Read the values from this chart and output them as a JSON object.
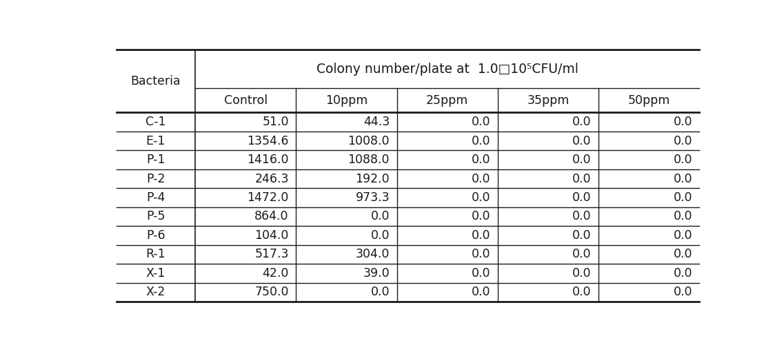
{
  "col_header_row1": "Colony number/plate at  1.0□10⁵CFU/ml",
  "bacteria_label": "Bacteria",
  "columns": [
    "Control",
    "10ppm",
    "25ppm",
    "35ppm",
    "50ppm"
  ],
  "rows": [
    {
      "bacteria": "C-1",
      "values": [
        "51.0",
        "44.3",
        "0.0",
        "0.0",
        "0.0"
      ]
    },
    {
      "bacteria": "E-1",
      "values": [
        "1354.6",
        "1008.0",
        "0.0",
        "0.0",
        "0.0"
      ]
    },
    {
      "bacteria": "P-1",
      "values": [
        "1416.0",
        "1088.0",
        "0.0",
        "0.0",
        "0.0"
      ]
    },
    {
      "bacteria": "P-2",
      "values": [
        "246.3",
        "192.0",
        "0.0",
        "0.0",
        "0.0"
      ]
    },
    {
      "bacteria": "P-4",
      "values": [
        "1472.0",
        "973.3",
        "0.0",
        "0.0",
        "0.0"
      ]
    },
    {
      "bacteria": "P-5",
      "values": [
        "864.0",
        "0.0",
        "0.0",
        "0.0",
        "0.0"
      ]
    },
    {
      "bacteria": "P-6",
      "values": [
        "104.0",
        "0.0",
        "0.0",
        "0.0",
        "0.0"
      ]
    },
    {
      "bacteria": "R-1",
      "values": [
        "517.3",
        "304.0",
        "0.0",
        "0.0",
        "0.0"
      ]
    },
    {
      "bacteria": "X-1",
      "values": [
        "42.0",
        "39.0",
        "0.0",
        "0.0",
        "0.0"
      ]
    },
    {
      "bacteria": "X-2",
      "values": [
        "750.0",
        "0.0",
        "0.0",
        "0.0",
        "0.0"
      ]
    }
  ],
  "font_color": "#1a1a1a",
  "line_color": "#1a1a1a",
  "bg_color": "#ffffff",
  "font_size": 12.5,
  "header_font_size": 13.5
}
